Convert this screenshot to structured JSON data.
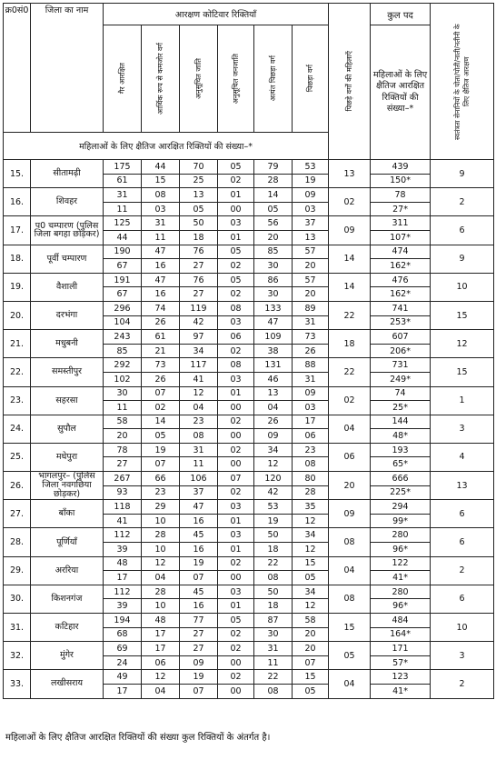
{
  "header": {
    "sl_no": "क्र0सं0",
    "district": "जिला का नाम",
    "category_group": "आरक्षण कोटिवार रिक्तियाँ",
    "total_posts": "कुल पद",
    "columns": [
      "गैर आरक्षित",
      "आर्थिक रूप से कमजोर वर्ग",
      "अनुसूचित जाति",
      "अनुसूचित जनजाति",
      "अत्यंत पिछड़ा वर्ग",
      "पिछड़ा वर्ग"
    ],
    "backward_women": "पिछड़े वर्गों की महिलाएँ",
    "women_horizontal": "महिलाओं के लिए क्षैतिज आरक्षित रिक्तियों की संख्या–*",
    "women_note_row": "महिलाओं के लिए क्षैतिज आरक्षित रिक्तियों की संख्या–*",
    "freedom_fighter": "स्वतंत्रता सेनानियों के पोता/पोती/नाती/नतीनी के लिए क्षैतिज आरक्षण"
  },
  "rows": [
    {
      "no": "15.",
      "district": "सीतामढ़ी",
      "r1": [
        "175",
        "44",
        "70",
        "05",
        "79",
        "53"
      ],
      "r2": [
        "61",
        "15",
        "25",
        "02",
        "28",
        "19"
      ],
      "bcw": "13",
      "total": "439",
      "women": "150*",
      "ff": "9"
    },
    {
      "no": "16.",
      "district": "शिवहर",
      "r1": [
        "31",
        "08",
        "13",
        "01",
        "14",
        "09"
      ],
      "r2": [
        "11",
        "03",
        "05",
        "00",
        "05",
        "03"
      ],
      "bcw": "02",
      "total": "78",
      "women": "27*",
      "ff": "2"
    },
    {
      "no": "17.",
      "district": "प0 चम्पारण (पुलिस जिला बगहा छोड़कर)",
      "r1": [
        "125",
        "31",
        "50",
        "03",
        "56",
        "37"
      ],
      "r2": [
        "44",
        "11",
        "18",
        "01",
        "20",
        "13"
      ],
      "bcw": "09",
      "total": "311",
      "women": "107*",
      "ff": "6"
    },
    {
      "no": "18.",
      "district": "पूर्वी चम्पारण",
      "r1": [
        "190",
        "47",
        "76",
        "05",
        "85",
        "57"
      ],
      "r2": [
        "67",
        "16",
        "27",
        "02",
        "30",
        "20"
      ],
      "bcw": "14",
      "total": "474",
      "women": "162*",
      "ff": "9"
    },
    {
      "no": "19.",
      "district": "वैशाली",
      "r1": [
        "191",
        "47",
        "76",
        "05",
        "86",
        "57"
      ],
      "r2": [
        "67",
        "16",
        "27",
        "02",
        "30",
        "20"
      ],
      "bcw": "14",
      "total": "476",
      "women": "162*",
      "ff": "10"
    },
    {
      "no": "20.",
      "district": "दरभंगा",
      "r1": [
        "296",
        "74",
        "119",
        "08",
        "133",
        "89"
      ],
      "r2": [
        "104",
        "26",
        "42",
        "03",
        "47",
        "31"
      ],
      "bcw": "22",
      "total": "741",
      "women": "253*",
      "ff": "15"
    },
    {
      "no": "21.",
      "district": "मधुबनी",
      "r1": [
        "243",
        "61",
        "97",
        "06",
        "109",
        "73"
      ],
      "r2": [
        "85",
        "21",
        "34",
        "02",
        "38",
        "26"
      ],
      "bcw": "18",
      "total": "607",
      "women": "206*",
      "ff": "12"
    },
    {
      "no": "22.",
      "district": "समस्तीपुर",
      "r1": [
        "292",
        "73",
        "117",
        "08",
        "131",
        "88"
      ],
      "r2": [
        "102",
        "26",
        "41",
        "03",
        "46",
        "31"
      ],
      "bcw": "22",
      "total": "731",
      "women": "249*",
      "ff": "15"
    },
    {
      "no": "23.",
      "district": "सहरसा",
      "r1": [
        "30",
        "07",
        "12",
        "01",
        "13",
        "09"
      ],
      "r2": [
        "11",
        "02",
        "04",
        "00",
        "04",
        "03"
      ],
      "bcw": "02",
      "total": "74",
      "women": "25*",
      "ff": "1"
    },
    {
      "no": "24.",
      "district": "सुपौल",
      "r1": [
        "58",
        "14",
        "23",
        "02",
        "26",
        "17"
      ],
      "r2": [
        "20",
        "05",
        "08",
        "00",
        "09",
        "06"
      ],
      "bcw": "04",
      "total": "144",
      "women": "48*",
      "ff": "3"
    },
    {
      "no": "25.",
      "district": "मधेपुरा",
      "r1": [
        "78",
        "19",
        "31",
        "02",
        "34",
        "23"
      ],
      "r2": [
        "27",
        "07",
        "11",
        "00",
        "12",
        "08"
      ],
      "bcw": "06",
      "total": "193",
      "women": "65*",
      "ff": "4"
    },
    {
      "no": "26.",
      "district": "भागलपुर– (पुलिस जिला नवगछिया छोड़कर)",
      "r1": [
        "267",
        "66",
        "106",
        "07",
        "120",
        "80"
      ],
      "r2": [
        "93",
        "23",
        "37",
        "02",
        "42",
        "28"
      ],
      "bcw": "20",
      "total": "666",
      "women": "225*",
      "ff": "13"
    },
    {
      "no": "27.",
      "district": "बाँका",
      "r1": [
        "118",
        "29",
        "47",
        "03",
        "53",
        "35"
      ],
      "r2": [
        "41",
        "10",
        "16",
        "01",
        "19",
        "12"
      ],
      "bcw": "09",
      "total": "294",
      "women": "99*",
      "ff": "6"
    },
    {
      "no": "28.",
      "district": "पूर्णियाँ",
      "r1": [
        "112",
        "28",
        "45",
        "03",
        "50",
        "34"
      ],
      "r2": [
        "39",
        "10",
        "16",
        "01",
        "18",
        "12"
      ],
      "bcw": "08",
      "total": "280",
      "women": "96*",
      "ff": "6"
    },
    {
      "no": "29.",
      "district": "अररिया",
      "r1": [
        "48",
        "12",
        "19",
        "02",
        "22",
        "15"
      ],
      "r2": [
        "17",
        "04",
        "07",
        "00",
        "08",
        "05"
      ],
      "bcw": "04",
      "total": "122",
      "women": "41*",
      "ff": "2"
    },
    {
      "no": "30.",
      "district": "किशनगंज",
      "r1": [
        "112",
        "28",
        "45",
        "03",
        "50",
        "34"
      ],
      "r2": [
        "39",
        "10",
        "16",
        "01",
        "18",
        "12"
      ],
      "bcw": "08",
      "total": "280",
      "women": "96*",
      "ff": "6"
    },
    {
      "no": "31.",
      "district": "कटिहार",
      "r1": [
        "194",
        "48",
        "77",
        "05",
        "87",
        "58"
      ],
      "r2": [
        "68",
        "17",
        "27",
        "02",
        "30",
        "20"
      ],
      "bcw": "15",
      "total": "484",
      "women": "164*",
      "ff": "10"
    },
    {
      "no": "32.",
      "district": "मुंगेर",
      "r1": [
        "69",
        "17",
        "27",
        "02",
        "31",
        "20"
      ],
      "r2": [
        "24",
        "06",
        "09",
        "00",
        "11",
        "07"
      ],
      "bcw": "05",
      "total": "171",
      "women": "57*",
      "ff": "3"
    },
    {
      "no": "33.",
      "district": "लखीसराय",
      "r1": [
        "49",
        "12",
        "19",
        "02",
        "22",
        "15"
      ],
      "r2": [
        "17",
        "04",
        "07",
        "00",
        "08",
        "05"
      ],
      "bcw": "04",
      "total": "123",
      "women": "41*",
      "ff": "2"
    }
  ],
  "footer": "महिलाओं के लिए क्षैतिज आरक्षित रिक्तियों की संख्या कुल रिक्तियों के अंतर्गत है।"
}
